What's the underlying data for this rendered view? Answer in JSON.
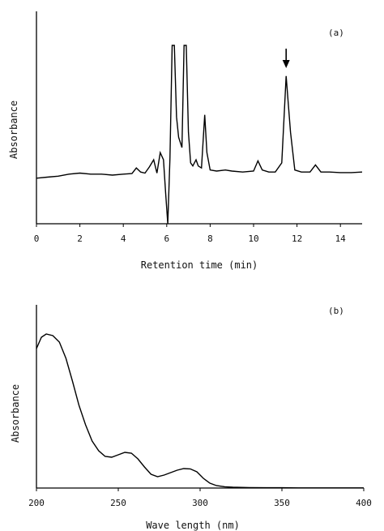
{
  "chart_data": [
    {
      "type": "line",
      "panel_label": "(a)",
      "title": "",
      "xlabel": "Retention time (min)",
      "ylabel": "Absorbance",
      "xlim": [
        0,
        15
      ],
      "xticks": [
        0,
        2,
        4,
        6,
        8,
        10,
        12,
        14
      ],
      "yticks_labeled": false,
      "grid": false,
      "annotation": {
        "type": "arrow-down",
        "x": 11.5,
        "label": ""
      },
      "series": [
        {
          "x": [
            0,
            0.5,
            1.0,
            1.5,
            2.0,
            2.5,
            3.0,
            3.5,
            4.0,
            4.4,
            4.6,
            4.8,
            5.0,
            5.2,
            5.4,
            5.55,
            5.7,
            5.85,
            5.95,
            6.05,
            6.15,
            6.25,
            6.35,
            6.45,
            6.55,
            6.7,
            6.8,
            6.9,
            7.0,
            7.1,
            7.2,
            7.35,
            7.45,
            7.6,
            7.75,
            7.85,
            8.0,
            8.3,
            8.7,
            9.0,
            9.5,
            10.0,
            10.2,
            10.4,
            10.7,
            11.0,
            11.3,
            11.5,
            11.7,
            11.9,
            12.2,
            12.6,
            12.85,
            13.1,
            13.5,
            14.0,
            14.5,
            15.0
          ],
          "y": [
            0.2,
            0.21,
            0.22,
            0.24,
            0.25,
            0.24,
            0.24,
            0.23,
            0.24,
            0.245,
            0.3,
            0.26,
            0.25,
            0.31,
            0.38,
            0.25,
            0.45,
            0.38,
            0.05,
            -0.25,
            0.4,
            1.5,
            1.5,
            0.8,
            0.6,
            0.5,
            1.5,
            1.5,
            0.65,
            0.35,
            0.32,
            0.38,
            0.32,
            0.3,
            0.82,
            0.45,
            0.28,
            0.27,
            0.28,
            0.27,
            0.26,
            0.27,
            0.37,
            0.28,
            0.26,
            0.26,
            0.35,
            1.2,
            0.65,
            0.28,
            0.26,
            0.26,
            0.33,
            0.26,
            0.26,
            0.255,
            0.255,
            0.26
          ]
        }
      ]
    },
    {
      "type": "line",
      "panel_label": "(b)",
      "title": "",
      "xlabel": "Wave length (nm)",
      "ylabel": "Absorbance",
      "xlim": [
        200,
        400
      ],
      "xticks": [
        200,
        250,
        300,
        350,
        400
      ],
      "yticks_labeled": false,
      "grid": false,
      "series": [
        {
          "x": [
            200,
            203,
            206,
            210,
            214,
            218,
            222,
            226,
            230,
            234,
            238,
            242,
            246,
            250,
            254,
            258,
            262,
            266,
            270,
            274,
            278,
            282,
            286,
            290,
            294,
            298,
            302,
            306,
            310,
            315,
            320,
            330,
            340,
            350,
            360,
            370,
            380,
            390,
            400
          ],
          "y": [
            0.86,
            0.93,
            0.95,
            0.94,
            0.9,
            0.8,
            0.66,
            0.51,
            0.39,
            0.29,
            0.23,
            0.195,
            0.19,
            0.205,
            0.22,
            0.215,
            0.18,
            0.13,
            0.085,
            0.07,
            0.08,
            0.095,
            0.11,
            0.12,
            0.118,
            0.1,
            0.06,
            0.03,
            0.015,
            0.008,
            0.005,
            0.003,
            0.002,
            0.002,
            0.001,
            0.001,
            0.001,
            0.001,
            0.001
          ]
        }
      ]
    }
  ]
}
